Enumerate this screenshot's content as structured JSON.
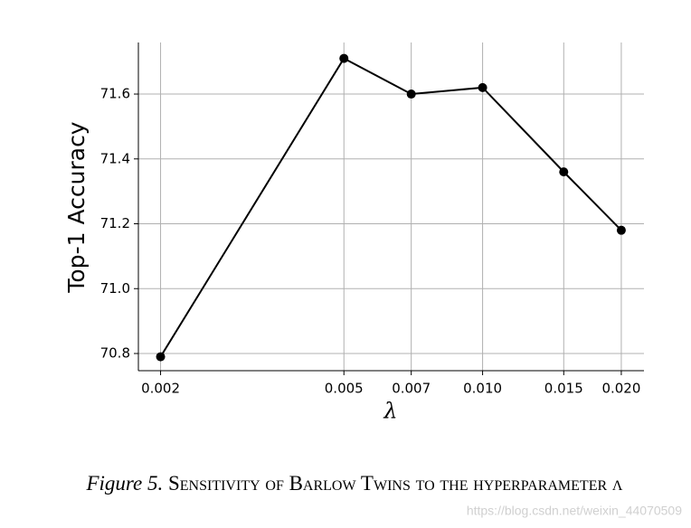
{
  "chart_data": {
    "type": "line",
    "xlabel": "λ",
    "ylabel": "Top-1 Accuracy",
    "x": [
      0.002,
      0.005,
      0.007,
      0.01,
      0.015,
      0.02
    ],
    "series": [
      {
        "color": "#000000",
        "values": [
          70.79,
          71.71,
          71.6,
          71.62,
          71.36,
          71.18
        ]
      }
    ],
    "xscale": "log",
    "xlim": [
      0.00179,
      0.0224
    ],
    "xticks": [
      0.002,
      0.005,
      0.007,
      {
        "value": 0.01,
        "label": "0.010"
      },
      0.015,
      {
        "value": 0.02,
        "label": "0.020"
      }
    ],
    "ylim": [
      70.747,
      71.759
    ],
    "yticks": [
      70.8,
      {
        "value": 71,
        "label": "71.0"
      },
      71.2,
      71.4,
      71.6
    ],
    "grid": true
  },
  "caption": {
    "label": "Figure 5.",
    "text": "Sensitivity of Barlow Twins to the hyperparameter λ"
  },
  "watermark": "https://blog.csdn.net/weixin_44070509"
}
